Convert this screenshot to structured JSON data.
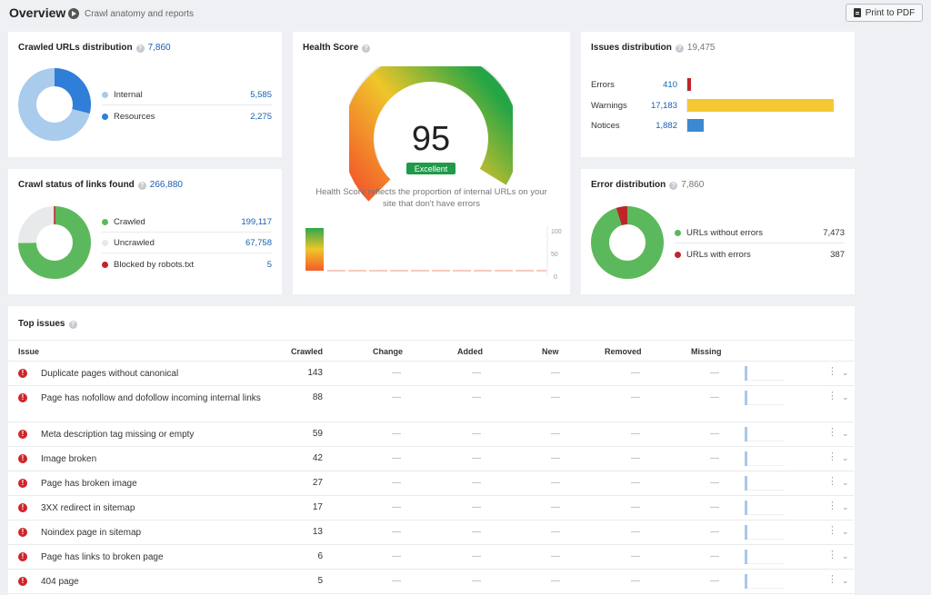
{
  "header": {
    "title": "Overview",
    "subtitle": "Crawl anatomy and reports",
    "print_label": "Print to PDF"
  },
  "crawled_urls": {
    "title": "Crawled URLs distribution",
    "count": "7,860",
    "items": [
      {
        "label": "Internal",
        "value": "5,585",
        "color": "#a9cbec"
      },
      {
        "label": "Resources",
        "value": "2,275",
        "color": "#2f7ed8"
      }
    ]
  },
  "crawl_status": {
    "title": "Crawl status of links found",
    "count": "266,880",
    "items": [
      {
        "label": "Crawled",
        "value": "199,117",
        "color": "#5cb85c"
      },
      {
        "label": "Uncrawled",
        "value": "67,758",
        "color": "#e8e9eb"
      },
      {
        "label": "Blocked by robots.txt",
        "value": "5",
        "color": "#c0242b"
      }
    ]
  },
  "health": {
    "title": "Health Score",
    "score": "95",
    "badge": "Excellent",
    "caption": "Health Score reflects the proportion of internal URLs on your site that don't have errors",
    "axis_ticks": [
      "100",
      "50",
      "0"
    ]
  },
  "issues_distribution": {
    "title": "Issues distribution",
    "count": "19,475",
    "items": [
      {
        "label": "Errors",
        "value": "410",
        "color": "#c0242b",
        "raw": 410
      },
      {
        "label": "Warnings",
        "value": "17,183",
        "color": "#f4c832",
        "raw": 17183
      },
      {
        "label": "Notices",
        "value": "1,882",
        "color": "#3b88d3",
        "raw": 1882
      }
    ]
  },
  "error_distribution": {
    "title": "Error distribution",
    "count": "7,860",
    "items": [
      {
        "label": "URLs without errors",
        "value": "7,473",
        "color": "#5cb85c"
      },
      {
        "label": "URLs with errors",
        "value": "387",
        "color": "#c0242b"
      }
    ]
  },
  "top_issues": {
    "title": "Top issues",
    "columns": [
      "Issue",
      "Crawled",
      "Change",
      "Added",
      "New",
      "Removed",
      "Missing"
    ],
    "dash": "—",
    "rows": [
      {
        "issue": "Duplicate pages without canonical",
        "crawled": "143"
      },
      {
        "issue": "Page has nofollow and dofollow incoming internal links",
        "crawled": "88"
      },
      {
        "issue": "Meta description tag missing or empty",
        "crawled": "59"
      },
      {
        "issue": "Image broken",
        "crawled": "42"
      },
      {
        "issue": "Page has broken image",
        "crawled": "27"
      },
      {
        "issue": "3XX redirect in sitemap",
        "crawled": "17"
      },
      {
        "issue": "Noindex page in sitemap",
        "crawled": "13"
      },
      {
        "issue": "Page has links to broken page",
        "crawled": "6"
      },
      {
        "issue": "404 page",
        "crawled": "5"
      }
    ]
  }
}
